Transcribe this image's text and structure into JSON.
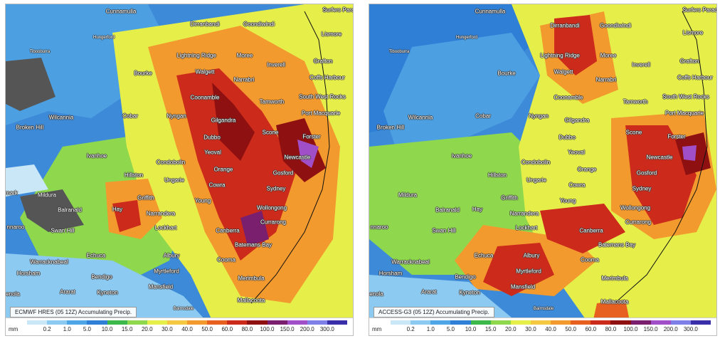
{
  "panels": [
    {
      "id": "left",
      "caption": "ECMWF HRES (05 12Z) Accumulating Precip.",
      "towns": [
        "Cunnamulla",
        "Dirranbandi",
        "Goondiwindi",
        "Surfers Parad",
        "Lismore",
        "Hungerford",
        "Tibooburra",
        "Lightning Ridge",
        "Moree",
        "Grafton",
        "Bourke",
        "Walgett",
        "Inverell",
        "Coffs Harbour",
        "Narrabri",
        "South West Rocks",
        "Coonamble",
        "Tamworth",
        "Wilcannia",
        "Cobar",
        "Nyngan",
        "Gilgandra",
        "Port Macquarie",
        "Broken Hill",
        "Dubbo",
        "Scone",
        "Forster",
        "Condobolin",
        "Yeoval",
        "Newcastle",
        "Ivanhoe",
        "Orange",
        "Gosford",
        "Hillston",
        "Ungarie",
        "Cowra",
        "Sydney",
        "Mildura",
        "Griffith",
        "Young",
        "Balranald",
        "Hay",
        "Narrandera",
        "Wollongong",
        "Currarong",
        "Swan Hill",
        "Lockhart",
        "Canberra",
        "Batemans Bay",
        "Echuca",
        "Albury",
        "Cooma",
        "Warracknabeal",
        "Myrtleford",
        "Merimbula",
        "Horsham",
        "Bendigo",
        "Mansfield",
        "Ararat",
        "Kyneton",
        "Mallacoota",
        "Bairnsdale",
        "enola",
        "mark",
        "nnaroo"
      ]
    },
    {
      "id": "right",
      "caption": "ACCESS-G3 (05 12Z) Accumulating Precip.",
      "towns": [
        "Cunnamulla",
        "Dirranbandi",
        "Goondiwindi",
        "Surfers Parad",
        "Lismore",
        "Hungerford",
        "Tibooburra",
        "Lightning Ridge",
        "Moree",
        "Grafton",
        "Bourke",
        "Walgett",
        "Inverell",
        "Coffs Harbour",
        "Narrabri",
        "South West Rocks",
        "Coonamble",
        "Tamworth",
        "Wilcannia",
        "Cobar",
        "Nyngan",
        "Gilgandra",
        "Port Macquarie",
        "Broken Hill",
        "Dubbo",
        "Scone",
        "Forster",
        "Condobolin",
        "Yeoval",
        "Newcastle",
        "Ivanhoe",
        "Orange",
        "Gosford",
        "Hillston",
        "Ungarie",
        "Cowra",
        "Sydney",
        "Mildura",
        "Griffith",
        "Young",
        "Balranald",
        "Hay",
        "Narrandera",
        "Wollongong",
        "Currarong",
        "Swan Hill",
        "Lockhart",
        "Canberra",
        "Batemans Bay",
        "Echuca",
        "Albury",
        "Cooma",
        "Warracknabeal",
        "Myrtleford",
        "Merimbula",
        "Horsham",
        "Bendigo",
        "Mansfield",
        "Ararat",
        "Kyneton",
        "Mallacoota",
        "Bairnsdale",
        "enola",
        "nnaroo"
      ]
    }
  ],
  "legend": {
    "unit": "mm",
    "labels": [
      "0.2",
      "1.0",
      "5.0",
      "10.0",
      "15.0",
      "20.0",
      "30.0",
      "40.0",
      "50.0",
      "60.0",
      "80.0",
      "100.0",
      "150.0",
      "200.0",
      "300.0"
    ],
    "colors": [
      "#c9e7f7",
      "#8ccaf2",
      "#4ea6e6",
      "#2f7fd6",
      "#3db84a",
      "#8fd84e",
      "#e6ef4a",
      "#f5c842",
      "#f39a2e",
      "#e8601f",
      "#cc2a1a",
      "#8e1010",
      "#7a1f6d",
      "#a04fc8",
      "#7f7fe8",
      "#3a2fa8"
    ]
  }
}
